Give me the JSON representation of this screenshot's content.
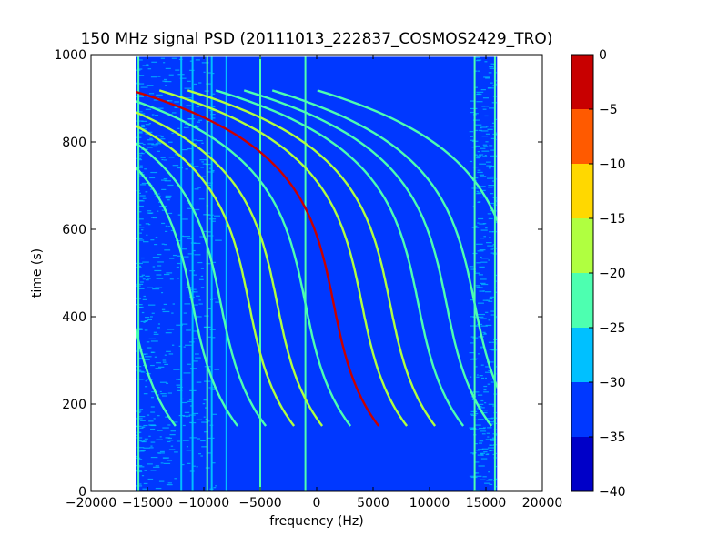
{
  "chart_data": {
    "type": "heatmap",
    "title": "150 MHz signal PSD (20111013_222837_COSMOS2429_TRO)",
    "xlabel": "frequency (Hz)",
    "ylabel": "time (s)",
    "xlim": [
      -20000,
      20000
    ],
    "ylim": [
      0,
      1000
    ],
    "xticks": [
      -20000,
      -15000,
      -10000,
      -5000,
      0,
      5000,
      10000,
      15000,
      20000
    ],
    "xtick_labels": [
      "−20000",
      "−15000",
      "−10000",
      "−5000",
      "0",
      "5000",
      "10000",
      "15000",
      "20000"
    ],
    "yticks": [
      0,
      200,
      400,
      600,
      800,
      1000
    ],
    "ytick_labels": [
      "0",
      "200",
      "400",
      "600",
      "800",
      "1000"
    ],
    "data_extent": {
      "freq_min": -16000,
      "freq_max": 16000,
      "time_min": 0,
      "time_max": 995
    },
    "background_level": -35,
    "vertical_lines": [
      {
        "freq": -15800,
        "level": -25
      },
      {
        "freq": -12000,
        "level": -30
      },
      {
        "freq": -11000,
        "level": -30
      },
      {
        "freq": -9700,
        "level": -25
      },
      {
        "freq": -9300,
        "level": -30
      },
      {
        "freq": -8000,
        "level": -30
      },
      {
        "freq": -5000,
        "level": -25
      },
      {
        "freq": -1000,
        "level": -25
      },
      {
        "freq": 14000,
        "level": -25
      },
      {
        "freq": 15800,
        "level": -25
      }
    ],
    "tracks": [
      {
        "center": -16500,
        "level": -25
      },
      {
        "center": -11000,
        "level": -25
      },
      {
        "center": -8500,
        "level": -25
      },
      {
        "center": -6000,
        "level": -20
      },
      {
        "center": -3500,
        "level": -20
      },
      {
        "center": -1000,
        "level": -25
      },
      {
        "center": 1500,
        "level": -5
      },
      {
        "center": 4000,
        "level": -20
      },
      {
        "center": 6500,
        "level": -20
      },
      {
        "center": 9000,
        "level": -25
      },
      {
        "center": 11500,
        "level": -25
      },
      {
        "center": 14000,
        "level": -25
      },
      {
        "center": 18000,
        "level": -25
      }
    ],
    "track_shape": {
      "center_time": 430,
      "half_span_hz": 2000,
      "curve_time_scale": 140
    },
    "colorbar": {
      "levels": [
        -40,
        -35,
        -30,
        -25,
        -20,
        -15,
        -10,
        -5,
        0
      ],
      "labels": [
        "−40",
        "−35",
        "−30",
        "−25",
        "−20",
        "−15",
        "−10",
        "−5",
        "0"
      ],
      "colors": [
        "#0000c8",
        "#0038ff",
        "#00c0ff",
        "#4dffb0",
        "#b0ff40",
        "#ffd800",
        "#ff5a00",
        "#c80000"
      ]
    }
  }
}
